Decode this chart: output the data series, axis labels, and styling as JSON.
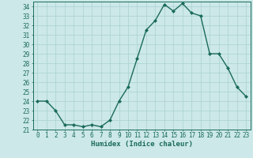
{
  "x": [
    0,
    1,
    2,
    3,
    4,
    5,
    6,
    7,
    8,
    9,
    10,
    11,
    12,
    13,
    14,
    15,
    16,
    17,
    18,
    19,
    20,
    21,
    22,
    23
  ],
  "y": [
    24,
    24,
    23,
    21.5,
    21.5,
    21.3,
    21.5,
    21.3,
    22,
    24,
    25.5,
    28.5,
    31.5,
    32.5,
    34.2,
    33.5,
    34.3,
    33.3,
    33,
    29,
    29,
    27.5,
    25.5,
    24.5
  ],
  "xlabel": "Humidex (Indice chaleur)",
  "ylim": [
    21,
    34.5
  ],
  "xlim": [
    -0.5,
    23.5
  ],
  "yticks": [
    21,
    22,
    23,
    24,
    25,
    26,
    27,
    28,
    29,
    30,
    31,
    32,
    33,
    34
  ],
  "xticks": [
    0,
    1,
    2,
    3,
    4,
    5,
    6,
    7,
    8,
    9,
    10,
    11,
    12,
    13,
    14,
    15,
    16,
    17,
    18,
    19,
    20,
    21,
    22,
    23
  ],
  "line_color": "#1a6b5a",
  "marker_color": "#1a6b5a",
  "bg_color": "#cce8e8",
  "grid_color": "#aad0d0",
  "tick_label_color": "#1a6b5a",
  "xlabel_color": "#1a6b5a",
  "xlabel_fontsize": 6.5,
  "tick_fontsize": 5.5,
  "marker": "D",
  "marker_size": 2,
  "line_width": 1.0
}
